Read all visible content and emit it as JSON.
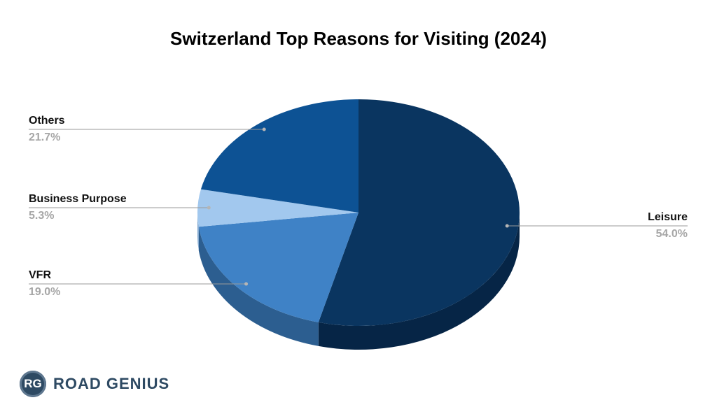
{
  "chart_data": {
    "type": "pie",
    "title": "Switzerland Top Reasons for Visiting (2024)",
    "slices": [
      {
        "label": "Leisure",
        "value": 54.0,
        "value_label": "54.0%",
        "color": "#0a3560",
        "side_color": "#062546"
      },
      {
        "label": "VFR",
        "value": 19.0,
        "value_label": "19.0%",
        "color": "#3f82c6",
        "side_color": "#2c5e90"
      },
      {
        "label": "Business Purpose",
        "value": 5.3,
        "value_label": "5.3%",
        "color": "#a2c8ee",
        "side_color": "#7ea6cf"
      },
      {
        "label": "Others",
        "value": 21.7,
        "value_label": "21.7%",
        "color": "#0d5294",
        "side_color": "#0a3d6e"
      }
    ],
    "legend": "none"
  },
  "brand": {
    "badge": "RG",
    "name": "ROAD GENIUS"
  }
}
